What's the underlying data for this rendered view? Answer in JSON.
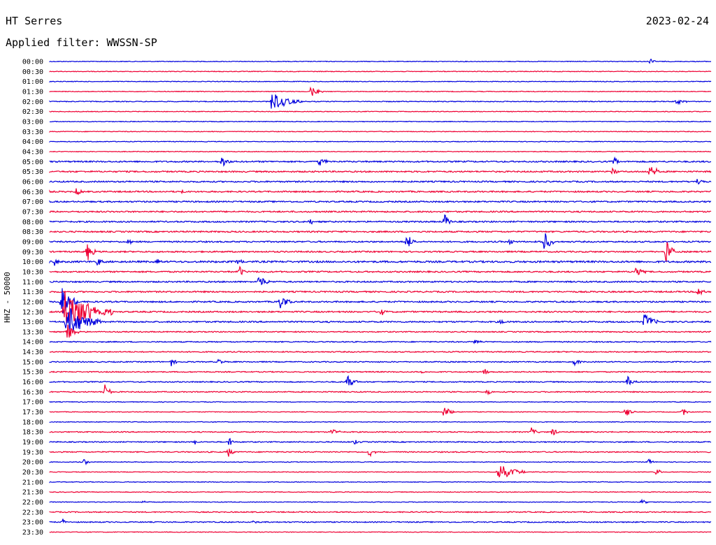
{
  "header": {
    "station": "HT Serres",
    "date": "2023-02-24",
    "filter": "Applied filter: WWSSN-SP"
  },
  "chart_data": {
    "type": "line",
    "title": "HT Serres",
    "ylabel": "HHZ - 50000",
    "tick_labels": [
      "00:00",
      "00:30",
      "01:00",
      "01:30",
      "02:00",
      "02:30",
      "03:00",
      "03:30",
      "04:00",
      "04:30",
      "05:00",
      "05:30",
      "06:00",
      "06:30",
      "07:00",
      "07:30",
      "08:00",
      "08:30",
      "09:00",
      "09:30",
      "10:00",
      "10:30",
      "11:00",
      "11:30",
      "12:00",
      "12:30",
      "13:00",
      "13:30",
      "14:00",
      "14:30",
      "15:00",
      "15:30",
      "16:00",
      "16:30",
      "17:00",
      "17:30",
      "18:00",
      "18:30",
      "19:00",
      "19:30",
      "20:00",
      "20:30",
      "21:00",
      "21:30",
      "22:00",
      "22:30",
      "23:00",
      "23:30"
    ],
    "row_colors": [
      "#0000dd",
      "#ee0033"
    ],
    "noise_level": [
      1,
      1,
      1,
      1,
      1.2,
      1,
      1,
      1,
      1,
      1,
      2,
      2,
      2,
      2,
      2,
      2,
      2,
      2,
      2,
      2,
      2.5,
      2,
      2,
      2,
      2,
      2,
      2,
      1.5,
      1.5,
      1.5,
      1.5,
      1.5,
      1.5,
      1.5,
      1,
      1,
      1,
      1.5,
      1.5,
      1.5,
      1,
      1,
      1,
      1,
      1,
      1.5,
      1.5,
      1
    ],
    "events": [
      {
        "row": 0,
        "x": 930,
        "amp": 4,
        "len": 10
      },
      {
        "row": 3,
        "x": 445,
        "amp": 8,
        "len": 18
      },
      {
        "row": 4,
        "x": 388,
        "amp": 14,
        "len": 45
      },
      {
        "row": 4,
        "x": 968,
        "amp": 4,
        "len": 18
      },
      {
        "row": 10,
        "x": 318,
        "amp": 10,
        "len": 14
      },
      {
        "row": 10,
        "x": 457,
        "amp": 8,
        "len": 14
      },
      {
        "row": 10,
        "x": 878,
        "amp": 6,
        "len": 14
      },
      {
        "row": 11,
        "x": 930,
        "amp": 16,
        "len": 14
      },
      {
        "row": 11,
        "x": 876,
        "amp": 6,
        "len": 12
      },
      {
        "row": 12,
        "x": 998,
        "amp": 7,
        "len": 10
      },
      {
        "row": 13,
        "x": 110,
        "amp": 7,
        "len": 12
      },
      {
        "row": 13,
        "x": 258,
        "amp": 4,
        "len": 10
      },
      {
        "row": 16,
        "x": 636,
        "amp": 12,
        "len": 12
      },
      {
        "row": 16,
        "x": 443,
        "amp": 5,
        "len": 10
      },
      {
        "row": 18,
        "x": 582,
        "amp": 12,
        "len": 14
      },
      {
        "row": 18,
        "x": 778,
        "amp": 16,
        "len": 16
      },
      {
        "row": 18,
        "x": 730,
        "amp": 7,
        "len": 10
      },
      {
        "row": 18,
        "x": 184,
        "amp": 5,
        "len": 8
      },
      {
        "row": 19,
        "x": 125,
        "amp": 14,
        "len": 14
      },
      {
        "row": 19,
        "x": 952,
        "amp": 18,
        "len": 18
      },
      {
        "row": 20,
        "x": 78,
        "amp": 6,
        "len": 10
      },
      {
        "row": 20,
        "x": 140,
        "amp": 9,
        "len": 10
      },
      {
        "row": 20,
        "x": 225,
        "amp": 5,
        "len": 8
      },
      {
        "row": 20,
        "x": 340,
        "amp": 5,
        "len": 8
      },
      {
        "row": 21,
        "x": 343,
        "amp": 9,
        "len": 10
      },
      {
        "row": 21,
        "x": 910,
        "amp": 8,
        "len": 14
      },
      {
        "row": 22,
        "x": 370,
        "amp": 11,
        "len": 18
      },
      {
        "row": 23,
        "x": 998,
        "amp": 8,
        "len": 14
      },
      {
        "row": 24,
        "x": 401,
        "amp": 14,
        "len": 16
      },
      {
        "row": 24,
        "x": 88,
        "amp": 24,
        "len": 26
      },
      {
        "row": 25,
        "x": 92,
        "amp": 32,
        "len": 70
      },
      {
        "row": 25,
        "x": 545,
        "amp": 6,
        "len": 10
      },
      {
        "row": 26,
        "x": 95,
        "amp": 26,
        "len": 50
      },
      {
        "row": 26,
        "x": 922,
        "amp": 14,
        "len": 20
      },
      {
        "row": 26,
        "x": 717,
        "amp": 4,
        "len": 8
      },
      {
        "row": 27,
        "x": 96,
        "amp": 14,
        "len": 20
      },
      {
        "row": 28,
        "x": 680,
        "amp": 6,
        "len": 10
      },
      {
        "row": 30,
        "x": 245,
        "amp": 7,
        "len": 10
      },
      {
        "row": 30,
        "x": 313,
        "amp": 5,
        "len": 10
      },
      {
        "row": 30,
        "x": 822,
        "amp": 6,
        "len": 12
      },
      {
        "row": 31,
        "x": 693,
        "amp": 8,
        "len": 10
      },
      {
        "row": 31,
        "x": 603,
        "amp": 5,
        "len": 8
      },
      {
        "row": 32,
        "x": 497,
        "amp": 10,
        "len": 16
      },
      {
        "row": 32,
        "x": 898,
        "amp": 8,
        "len": 14
      },
      {
        "row": 33,
        "x": 150,
        "amp": 11,
        "len": 12
      },
      {
        "row": 33,
        "x": 697,
        "amp": 5,
        "len": 8
      },
      {
        "row": 35,
        "x": 635,
        "amp": 10,
        "len": 16
      },
      {
        "row": 35,
        "x": 895,
        "amp": 8,
        "len": 14
      },
      {
        "row": 35,
        "x": 976,
        "amp": 7,
        "len": 12
      },
      {
        "row": 37,
        "x": 475,
        "amp": 7,
        "len": 12
      },
      {
        "row": 37,
        "x": 760,
        "amp": 7,
        "len": 12
      },
      {
        "row": 37,
        "x": 790,
        "amp": 6,
        "len": 12
      },
      {
        "row": 38,
        "x": 328,
        "amp": 8,
        "len": 10
      },
      {
        "row": 38,
        "x": 505,
        "amp": 6,
        "len": 12
      },
      {
        "row": 38,
        "x": 278,
        "amp": 4,
        "len": 8
      },
      {
        "row": 39,
        "x": 327,
        "amp": 8,
        "len": 10
      },
      {
        "row": 39,
        "x": 528,
        "amp": 7,
        "len": 12
      },
      {
        "row": 40,
        "x": 121,
        "amp": 5,
        "len": 8
      },
      {
        "row": 40,
        "x": 928,
        "amp": 6,
        "len": 8
      },
      {
        "row": 41,
        "x": 712,
        "amp": 14,
        "len": 40
      },
      {
        "row": 41,
        "x": 938,
        "amp": 7,
        "len": 10
      },
      {
        "row": 44,
        "x": 205,
        "amp": 3,
        "len": 10
      },
      {
        "row": 44,
        "x": 918,
        "amp": 3,
        "len": 16
      },
      {
        "row": 46,
        "x": 90,
        "amp": 4,
        "len": 8
      },
      {
        "row": 46,
        "x": 361,
        "amp": 4,
        "len": 8
      }
    ]
  }
}
